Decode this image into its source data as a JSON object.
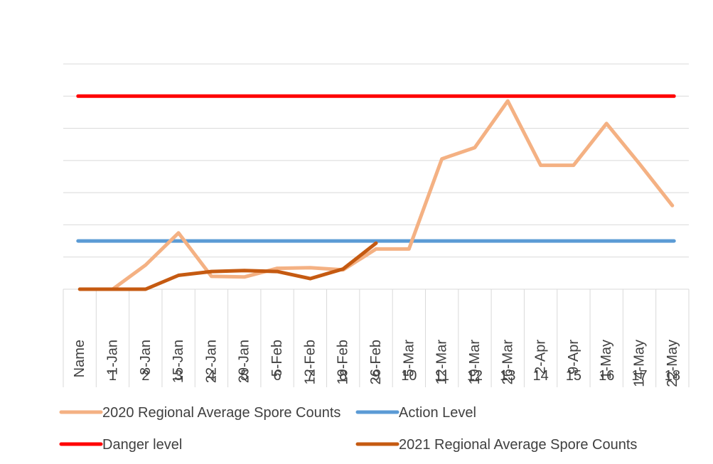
{
  "chart_data": {
    "type": "line",
    "title": "",
    "xlabel": "",
    "ylabel": "",
    "ylim": [
      0,
      7
    ],
    "grid": true,
    "legend_position": "bottom",
    "x_axis": {
      "row1_labels": [
        "Name",
        "1-Jan",
        "8-Jan",
        "15-Jan",
        "22-Jan",
        "29-Jan",
        "5-Feb",
        "12-Feb",
        "19-Feb",
        "26-Feb",
        "5-Mar",
        "12-Mar",
        "19-Mar",
        "26-Mar",
        "2-Apr",
        "9-Apr",
        "1-May",
        "14-May",
        "22-May"
      ],
      "row2_labels": [
        "",
        "1",
        "2",
        "3",
        "4",
        "5",
        "6",
        "7",
        "8",
        "9",
        "10",
        "11",
        "12",
        "13",
        "14",
        "15",
        "16",
        "17",
        "18"
      ]
    },
    "series": [
      {
        "name": "2020 Regional Average Spore Counts",
        "color": "#F4B183",
        "values": [
          null,
          0,
          0.75,
          1.75,
          0.4,
          0.38,
          0.65,
          0.67,
          0.6,
          1.25,
          1.25,
          4.05,
          4.4,
          5.85,
          3.85,
          3.85,
          5.15,
          3.9,
          2.6
        ]
      },
      {
        "name": "Action Level",
        "color": "#5B9BD5",
        "values": [
          1.5,
          1.5,
          1.5,
          1.5,
          1.5,
          1.5,
          1.5,
          1.5,
          1.5,
          1.5,
          1.5,
          1.5,
          1.5,
          1.5,
          1.5,
          1.5,
          1.5,
          1.5,
          1.5
        ]
      },
      {
        "name": "Danger level",
        "color": "#FF0000",
        "values": [
          6,
          6,
          6,
          6,
          6,
          6,
          6,
          6,
          6,
          6,
          6,
          6,
          6,
          6,
          6,
          6,
          6,
          6,
          6
        ]
      },
      {
        "name": "2021 Regional Average Spore Counts",
        "color": "#C55A11",
        "values": [
          0,
          0,
          0,
          0.43,
          0.55,
          0.58,
          0.55,
          0.33,
          0.63,
          1.43,
          null,
          null,
          null,
          null,
          null,
          null,
          null,
          null,
          null
        ]
      }
    ]
  }
}
